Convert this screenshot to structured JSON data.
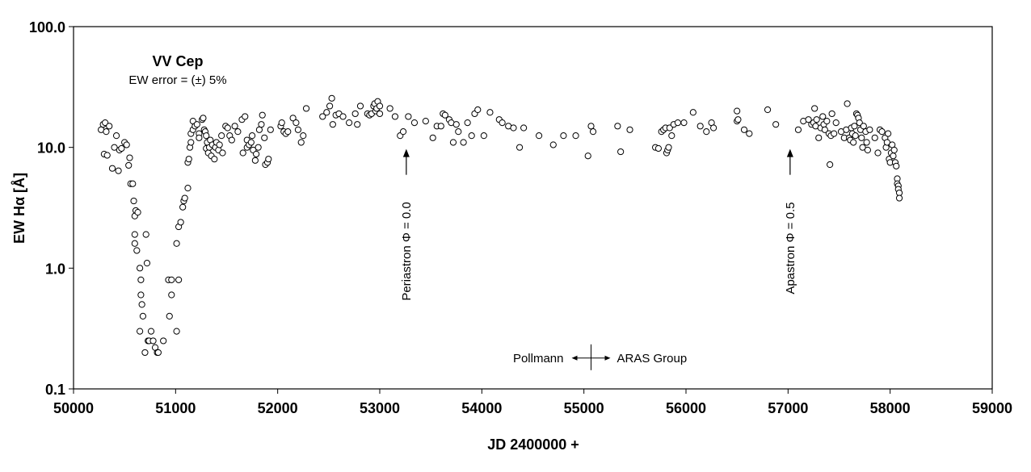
{
  "chart_data": {
    "type": "scatter",
    "title": "VV Cep",
    "subtitle": "EW error = (±) 5%",
    "xlabel": "JD 2400000 +",
    "ylabel": "EW Hα  [Å]",
    "xlim": [
      50000,
      59000
    ],
    "ylim": [
      0.1,
      100
    ],
    "y_scale": "log",
    "grid": false,
    "x_ticks": [
      50000,
      51000,
      52000,
      53000,
      54000,
      55000,
      56000,
      57000,
      58000,
      59000
    ],
    "x_tick_labels": [
      "50000",
      "51000",
      "52000",
      "53000",
      "54000",
      "55000",
      "56000",
      "57000",
      "58000",
      "59000"
    ],
    "y_ticks": [
      0.1,
      1,
      10,
      100
    ],
    "y_tick_labels": [
      "0.1",
      "1.0",
      "10.0",
      "100.0"
    ],
    "annotations": [
      {
        "text": "Periastron  Φ = 0.0",
        "x": 53260,
        "y": 10.0
      },
      {
        "text": "Apastron  Φ = 0.5",
        "x": 57020,
        "y": 10.0
      },
      {
        "text": "Pollmann",
        "x": 55070,
        "y": 0.18
      },
      {
        "text": "ARAS Group",
        "x": 55070,
        "y": 0.18
      }
    ],
    "series": [
      {
        "marker": "open-circle",
        "points": [
          [
            50270,
            14.0
          ],
          [
            50290,
            15.5
          ],
          [
            50300,
            8.8
          ],
          [
            50310,
            16.0
          ],
          [
            50320,
            13.5
          ],
          [
            50330,
            8.6
          ],
          [
            50350,
            15.0
          ],
          [
            50380,
            6.7
          ],
          [
            50400,
            10.0
          ],
          [
            50420,
            12.5
          ],
          [
            50440,
            6.4
          ],
          [
            50450,
            9.5
          ],
          [
            50470,
            9.8
          ],
          [
            50500,
            11.0
          ],
          [
            50520,
            10.5
          ],
          [
            50540,
            7.1
          ],
          [
            50550,
            8.2
          ],
          [
            50560,
            5.0
          ],
          [
            50580,
            5.0
          ],
          [
            50590,
            3.6
          ],
          [
            50600,
            2.7
          ],
          [
            50610,
            3.0
          ],
          [
            50630,
            2.9
          ],
          [
            50600,
            1.9
          ],
          [
            50600,
            1.6
          ],
          [
            50620,
            1.4
          ],
          [
            50650,
            1.0
          ],
          [
            50660,
            0.8
          ],
          [
            50660,
            0.6
          ],
          [
            50670,
            0.5
          ],
          [
            50680,
            0.4
          ],
          [
            50650,
            0.3
          ],
          [
            50700,
            0.2
          ],
          [
            50710,
            1.9
          ],
          [
            50720,
            1.1
          ],
          [
            50730,
            0.25
          ],
          [
            50740,
            0.25
          ],
          [
            50760,
            0.3
          ],
          [
            50780,
            0.25
          ],
          [
            50800,
            0.22
          ],
          [
            50820,
            0.2
          ],
          [
            50830,
            0.2
          ],
          [
            50880,
            0.25
          ],
          [
            50930,
            0.8
          ],
          [
            50940,
            0.4
          ],
          [
            50960,
            0.6
          ],
          [
            50960,
            0.8
          ],
          [
            51010,
            0.3
          ],
          [
            51010,
            1.6
          ],
          [
            51030,
            0.8
          ],
          [
            51030,
            2.2
          ],
          [
            51050,
            2.4
          ],
          [
            51070,
            3.2
          ],
          [
            51080,
            3.6
          ],
          [
            51090,
            3.8
          ],
          [
            51120,
            4.6
          ],
          [
            51120,
            7.5
          ],
          [
            51130,
            8.0
          ],
          [
            51140,
            10.0
          ],
          [
            51150,
            11.0
          ],
          [
            51150,
            13.0
          ],
          [
            51170,
            14.0
          ],
          [
            51170,
            16.5
          ],
          [
            51190,
            15.0
          ],
          [
            51210,
            15.5
          ],
          [
            51230,
            13.0
          ],
          [
            51230,
            12.0
          ],
          [
            51260,
            17.0
          ],
          [
            51270,
            17.5
          ],
          [
            51280,
            14.0
          ],
          [
            51290,
            13.5
          ],
          [
            51300,
            9.8
          ],
          [
            51300,
            12.5
          ],
          [
            51310,
            11.0
          ],
          [
            51320,
            9.0
          ],
          [
            51330,
            10.0
          ],
          [
            51340,
            11.5
          ],
          [
            51350,
            8.5
          ],
          [
            51360,
            10.5
          ],
          [
            51380,
            8.0
          ],
          [
            51390,
            10.0
          ],
          [
            51400,
            11.0
          ],
          [
            51420,
            9.5
          ],
          [
            51430,
            10.5
          ],
          [
            51450,
            12.5
          ],
          [
            51460,
            9.0
          ],
          [
            51490,
            15.0
          ],
          [
            51510,
            14.5
          ],
          [
            51530,
            12.5
          ],
          [
            51550,
            11.5
          ],
          [
            51580,
            15.0
          ],
          [
            51610,
            13.5
          ],
          [
            51650,
            17.0
          ],
          [
            51680,
            18.0
          ],
          [
            51660,
            9.0
          ],
          [
            51700,
            10.0
          ],
          [
            51700,
            11.5
          ],
          [
            51720,
            10.5
          ],
          [
            51740,
            11.0
          ],
          [
            51750,
            12.5
          ],
          [
            51760,
            9.5
          ],
          [
            51780,
            7.8
          ],
          [
            51790,
            8.8
          ],
          [
            51810,
            10.0
          ],
          [
            51820,
            14.0
          ],
          [
            51840,
            15.5
          ],
          [
            51850,
            18.5
          ],
          [
            51870,
            12.0
          ],
          [
            51880,
            7.2
          ],
          [
            51900,
            7.5
          ],
          [
            51910,
            8.0
          ],
          [
            51930,
            14.0
          ],
          [
            52030,
            15.0
          ],
          [
            52040,
            16.0
          ],
          [
            52060,
            13.5
          ],
          [
            52080,
            13.0
          ],
          [
            52100,
            13.5
          ],
          [
            52150,
            17.5
          ],
          [
            52180,
            16.0
          ],
          [
            52200,
            14.0
          ],
          [
            52230,
            11.0
          ],
          [
            52250,
            12.5
          ],
          [
            52280,
            21.0
          ],
          [
            52440,
            18.0
          ],
          [
            52480,
            19.5
          ],
          [
            52510,
            22.0
          ],
          [
            52530,
            25.5
          ],
          [
            52540,
            15.5
          ],
          [
            52570,
            18.5
          ],
          [
            52600,
            19.0
          ],
          [
            52640,
            18.0
          ],
          [
            52700,
            16.0
          ],
          [
            52760,
            19.0
          ],
          [
            52780,
            15.5
          ],
          [
            52810,
            22.0
          ],
          [
            52880,
            19.0
          ],
          [
            52900,
            18.5
          ],
          [
            52920,
            19.0
          ],
          [
            52940,
            22.0
          ],
          [
            52950,
            23.0
          ],
          [
            52960,
            20.0
          ],
          [
            52970,
            21.0
          ],
          [
            52980,
            24.0
          ],
          [
            53000,
            19.0
          ],
          [
            53000,
            22.0
          ],
          [
            53100,
            21.0
          ],
          [
            53150,
            18.0
          ],
          [
            53200,
            12.5
          ],
          [
            53230,
            13.5
          ],
          [
            53280,
            18.0
          ],
          [
            53340,
            16.0
          ],
          [
            53450,
            16.5
          ],
          [
            53520,
            12.0
          ],
          [
            53560,
            15.0
          ],
          [
            53600,
            15.0
          ],
          [
            53620,
            19.0
          ],
          [
            53640,
            18.5
          ],
          [
            53680,
            17.0
          ],
          [
            53700,
            16.0
          ],
          [
            53720,
            11.0
          ],
          [
            53750,
            15.5
          ],
          [
            53770,
            13.5
          ],
          [
            53820,
            11.0
          ],
          [
            53860,
            16.0
          ],
          [
            53900,
            12.5
          ],
          [
            53930,
            19.0
          ],
          [
            53960,
            20.5
          ],
          [
            54020,
            12.5
          ],
          [
            54080,
            19.5
          ],
          [
            54170,
            17.0
          ],
          [
            54200,
            16.0
          ],
          [
            54260,
            15.0
          ],
          [
            54310,
            14.5
          ],
          [
            54370,
            10.0
          ],
          [
            54410,
            14.5
          ],
          [
            54560,
            12.5
          ],
          [
            54700,
            10.5
          ],
          [
            54800,
            12.5
          ],
          [
            54920,
            12.5
          ],
          [
            55040,
            8.5
          ],
          [
            55070,
            15.0
          ],
          [
            55090,
            13.5
          ],
          [
            55330,
            15.0
          ],
          [
            55360,
            9.2
          ],
          [
            55450,
            14.0
          ],
          [
            55700,
            10.0
          ],
          [
            55730,
            9.8
          ],
          [
            55760,
            13.5
          ],
          [
            55780,
            14.0
          ],
          [
            55800,
            14.5
          ],
          [
            55810,
            9.0
          ],
          [
            55820,
            9.5
          ],
          [
            55830,
            10.0
          ],
          [
            55840,
            14.5
          ],
          [
            55860,
            12.5
          ],
          [
            55880,
            15.5
          ],
          [
            55920,
            16.0
          ],
          [
            55980,
            16.0
          ],
          [
            56070,
            19.5
          ],
          [
            56140,
            15.0
          ],
          [
            56200,
            13.5
          ],
          [
            56250,
            16.0
          ],
          [
            56270,
            14.5
          ],
          [
            56500,
            20.0
          ],
          [
            56500,
            16.5
          ],
          [
            56510,
            17.0
          ],
          [
            56570,
            14.0
          ],
          [
            56620,
            13.0
          ],
          [
            56800,
            20.5
          ],
          [
            56880,
            15.5
          ],
          [
            57100,
            14.0
          ],
          [
            57150,
            16.5
          ],
          [
            57200,
            17.0
          ],
          [
            57230,
            15.5
          ],
          [
            57250,
            16.0
          ],
          [
            57270,
            15.0
          ],
          [
            57260,
            21.0
          ],
          [
            57280,
            17.0
          ],
          [
            57300,
            12.0
          ],
          [
            57320,
            14.5
          ],
          [
            57340,
            18.0
          ],
          [
            57350,
            15.5
          ],
          [
            57360,
            14.0
          ],
          [
            57380,
            16.5
          ],
          [
            57400,
            13.0
          ],
          [
            57410,
            7.2
          ],
          [
            57420,
            12.5
          ],
          [
            57430,
            19.0
          ],
          [
            57450,
            13.0
          ],
          [
            57470,
            16.0
          ],
          [
            57520,
            13.5
          ],
          [
            57550,
            12.0
          ],
          [
            57570,
            14.0
          ],
          [
            57580,
            23.0
          ],
          [
            57600,
            12.0
          ],
          [
            57610,
            11.5
          ],
          [
            57620,
            14.5
          ],
          [
            57630,
            13.0
          ],
          [
            57640,
            11.0
          ],
          [
            57650,
            15.0
          ],
          [
            57660,
            12.5
          ],
          [
            57670,
            19.0
          ],
          [
            57680,
            18.5
          ],
          [
            57690,
            17.5
          ],
          [
            57700,
            16.0
          ],
          [
            57710,
            14.0
          ],
          [
            57720,
            12.0
          ],
          [
            57730,
            10.0
          ],
          [
            57740,
            15.0
          ],
          [
            57760,
            13.5
          ],
          [
            57770,
            11.0
          ],
          [
            57780,
            9.5
          ],
          [
            57800,
            14.0
          ],
          [
            57850,
            12.0
          ],
          [
            57880,
            9.0
          ],
          [
            57900,
            14.0
          ],
          [
            57920,
            13.5
          ],
          [
            57950,
            12.0
          ],
          [
            57960,
            10.0
          ],
          [
            57970,
            11.0
          ],
          [
            57980,
            13.0
          ],
          [
            57990,
            8.0
          ],
          [
            58000,
            7.5
          ],
          [
            58010,
            9.0
          ],
          [
            58020,
            10.5
          ],
          [
            58030,
            8.5
          ],
          [
            58040,
            9.5
          ],
          [
            58050,
            7.5
          ],
          [
            58060,
            7.0
          ],
          [
            58070,
            5.5
          ],
          [
            58070,
            5.0
          ],
          [
            58080,
            4.8
          ],
          [
            58080,
            4.5
          ],
          [
            58090,
            4.2
          ],
          [
            58090,
            3.8
          ]
        ]
      }
    ]
  }
}
